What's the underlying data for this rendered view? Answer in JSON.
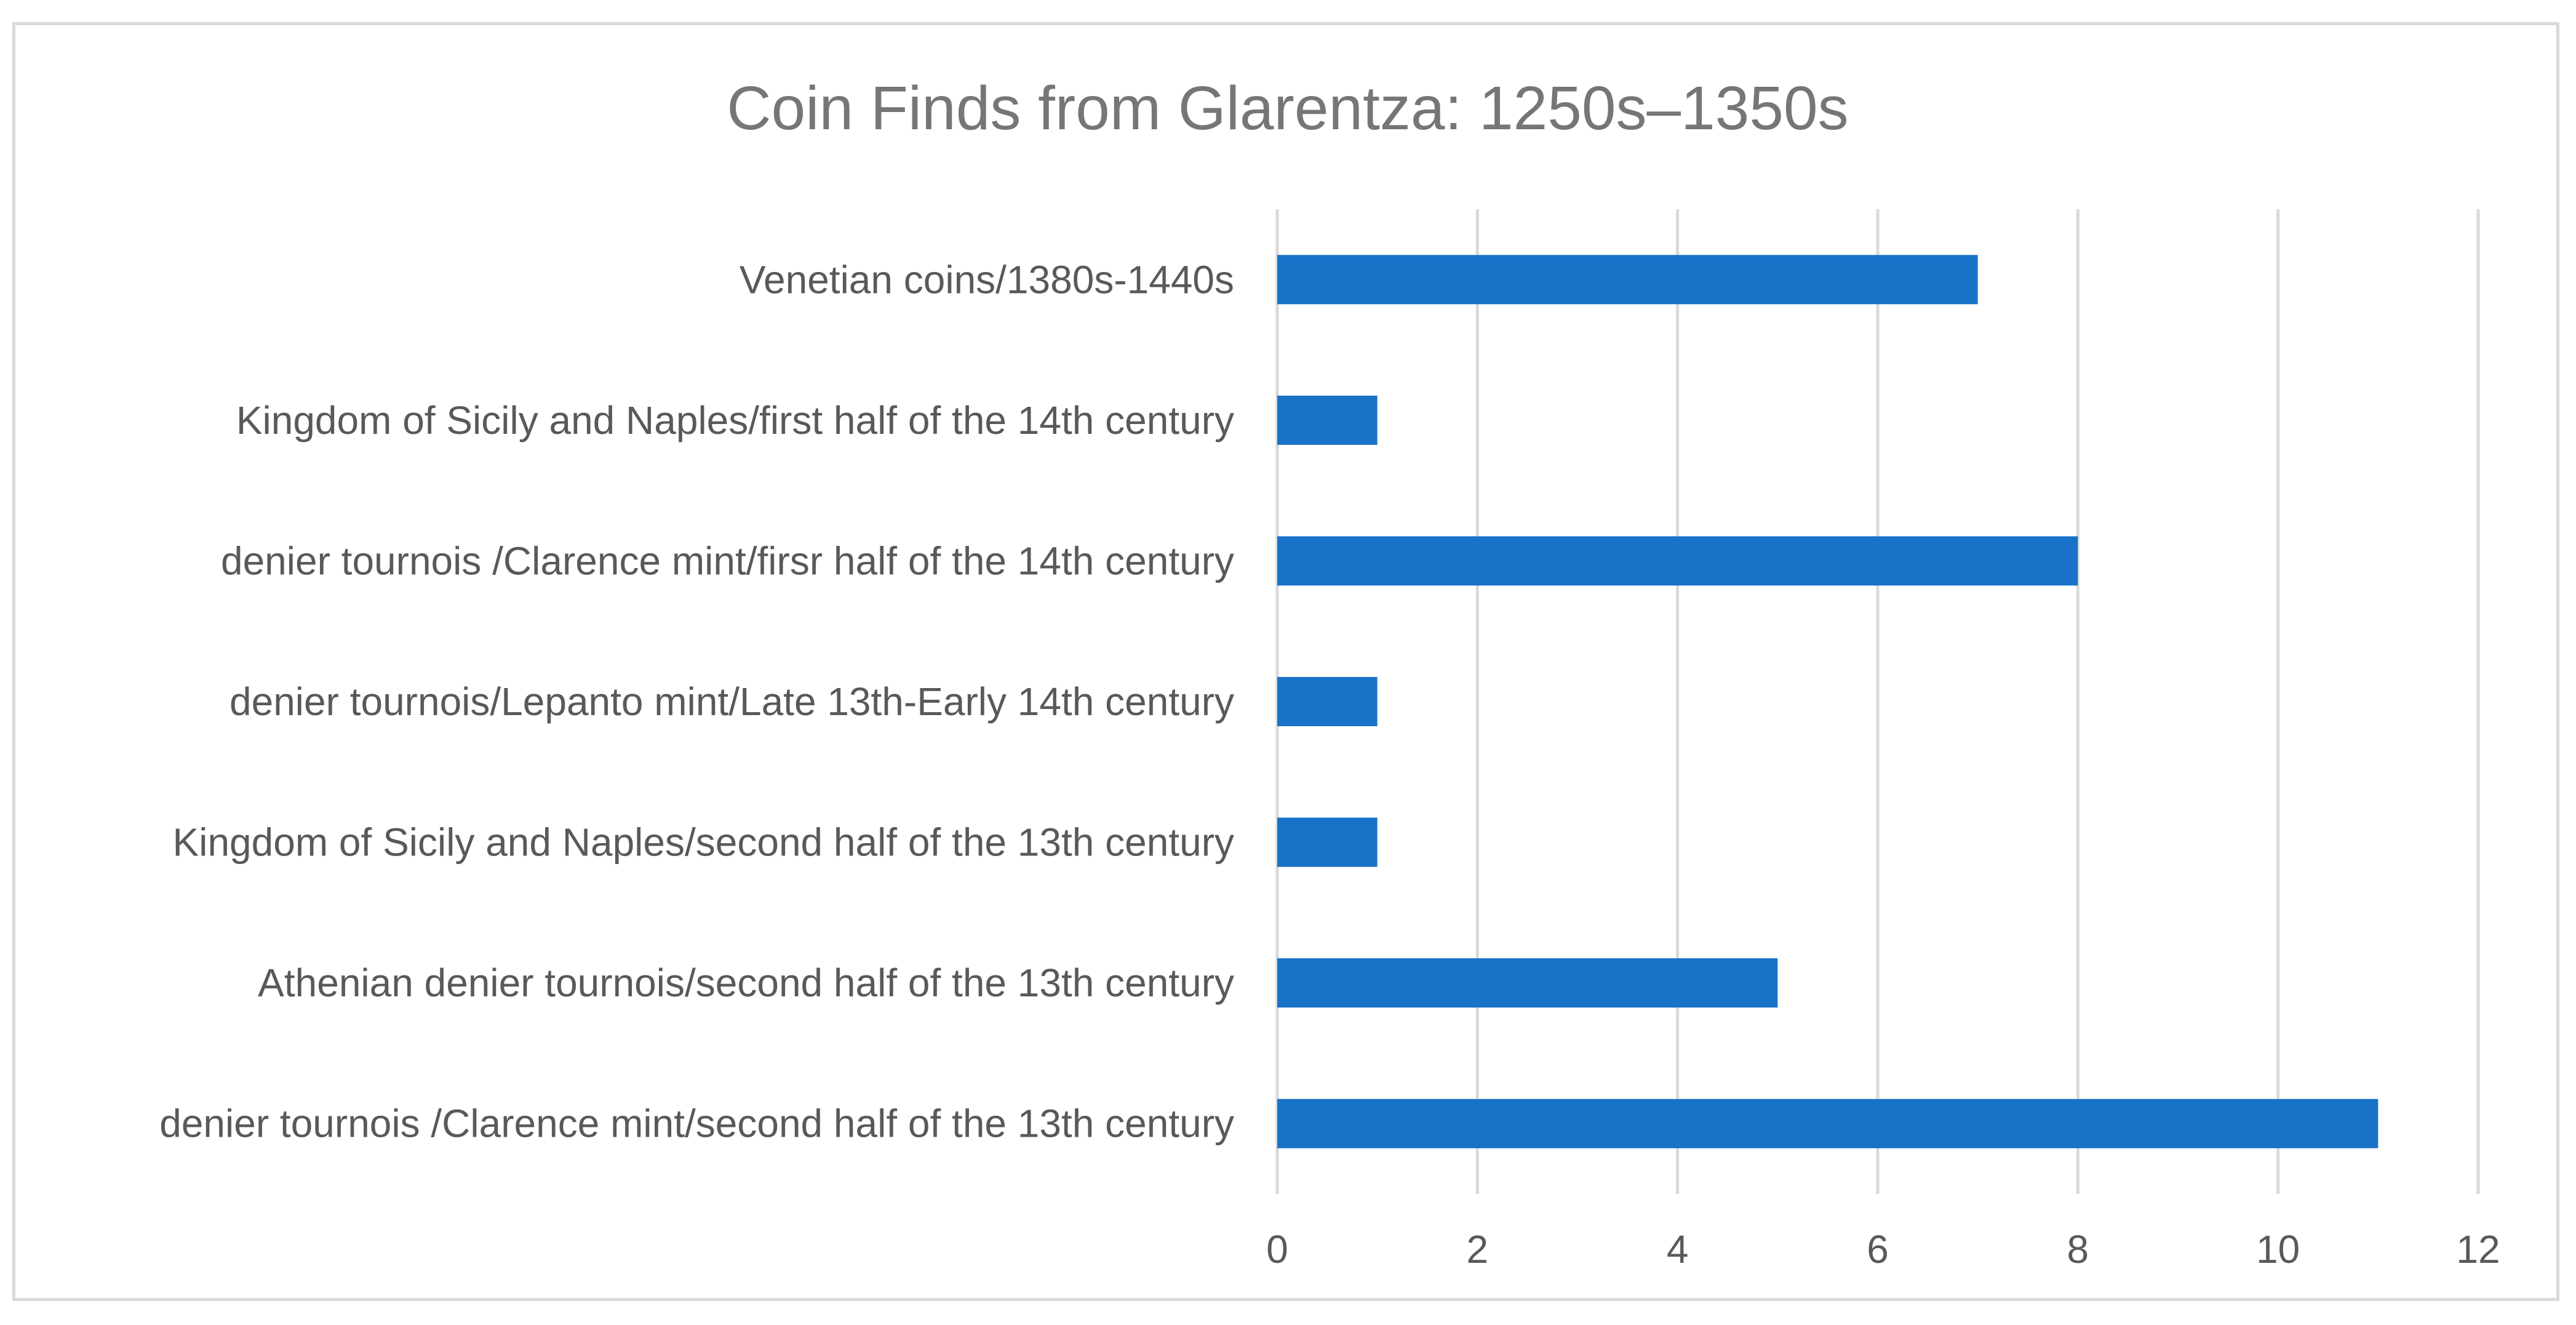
{
  "chart_data": {
    "type": "bar",
    "orientation": "horizontal",
    "title": "Coin Finds from Glarentza: 1250s–1350s",
    "xlabel": "",
    "ylabel": "",
    "categories": [
      "Venetian coins/1380s-1440s",
      "Kingdom of Sicily and Naples/first half of the 14th century",
      "denier tournois /Clarence mint/firsr half of the 14th century",
      "denier tournois/Lepanto mint/Late 13th-Early 14th century",
      "Kingdom of Sicily and Naples/second half of the 13th century",
      "Athenian denier tournois/second half of the 13th century",
      "denier tournois /Clarence mint/second half of the 13th century"
    ],
    "values": [
      7,
      1,
      8,
      1,
      1,
      5,
      11
    ],
    "xlim": [
      0,
      12
    ],
    "ticks": [
      "0",
      "2",
      "4",
      "6",
      "8",
      "10",
      "12"
    ],
    "grid": true,
    "legend": "none",
    "bar_color": "#1872C8"
  }
}
